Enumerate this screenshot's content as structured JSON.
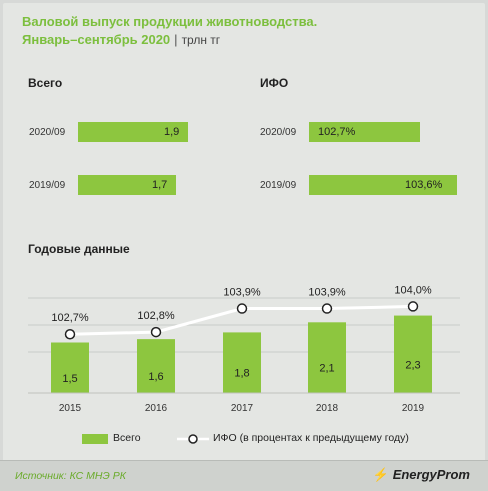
{
  "header": {
    "title_line1": "Валовой выпуск продукции животноводства.",
    "title_line2": "Январь–сентябрь 2020",
    "separator": "|",
    "unit": "трлн тг"
  },
  "left_panel": {
    "label": "Всего",
    "rows": [
      {
        "period": "2020/09",
        "value": 1.9,
        "display": "1,9"
      },
      {
        "period": "2019/09",
        "value": 1.7,
        "display": "1,7"
      }
    ]
  },
  "right_panel": {
    "label": "ИФО",
    "rows": [
      {
        "period": "2020/09",
        "value": 102.7,
        "display": "102,7%"
      },
      {
        "period": "2019/09",
        "value": 103.6,
        "display": "103,6%"
      }
    ]
  },
  "annual_label": "Годовые данные",
  "chart_data": {
    "type": "bar",
    "title": "Годовые данные",
    "categories": [
      "2015",
      "2016",
      "2017",
      "2018",
      "2019"
    ],
    "series": [
      {
        "name": "Всего",
        "type": "bar",
        "values": [
          1.5,
          1.6,
          1.8,
          2.1,
          2.3
        ],
        "labels": [
          "1,5",
          "1,6",
          "1,8",
          "2,1",
          "2,3"
        ],
        "color": "#8dc63f"
      },
      {
        "name": "ИФО (в процентах к предыдущему году)",
        "type": "line",
        "values": [
          102.7,
          102.8,
          103.9,
          103.9,
          104.0
        ],
        "labels": [
          "102,7%",
          "102,8%",
          "103,9%",
          "103,9%",
          "104,0%"
        ],
        "color": "#ffffff"
      }
    ],
    "grid": true
  },
  "legend": {
    "bar_label": "Всего",
    "line_label": "ИФО (в процентах к предыдущему году)"
  },
  "footer": {
    "source": "Источник: КС МНЭ РК",
    "brand": "EnergyProm"
  },
  "colors": {
    "accent": "#8dc63f",
    "title": "#7cbf3e",
    "background": "#e4e6e3"
  }
}
